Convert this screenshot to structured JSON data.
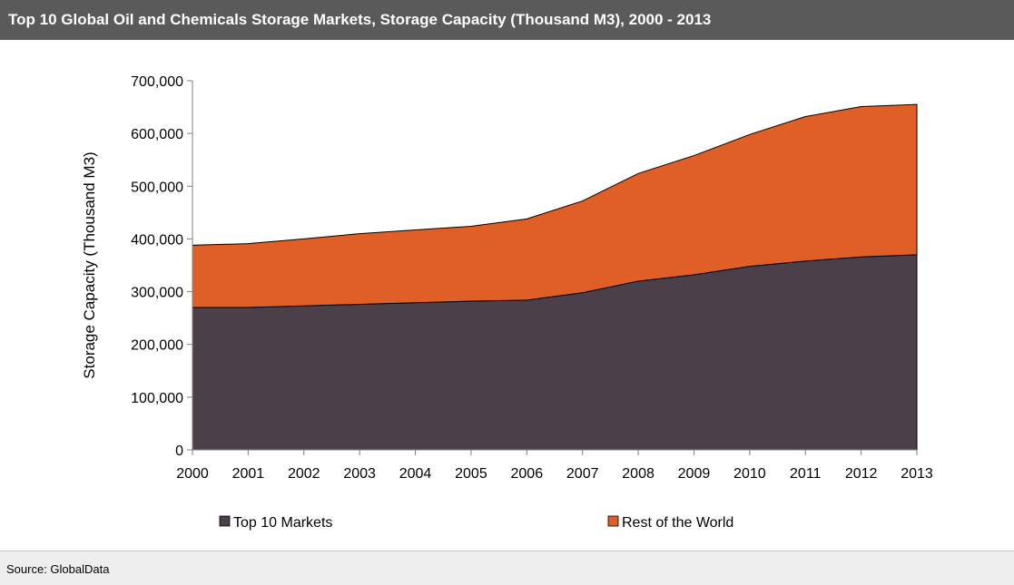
{
  "title": "Top 10 Global Oil and Chemicals Storage Markets, Storage Capacity (Thousand M3), 2000 - 2013",
  "source": "Source: GlobalData",
  "colors": {
    "header_bg": "#5a5a5a",
    "top10": "#4b3f4a",
    "rest": "#e05f26",
    "footer_bg": "#eeeeee"
  },
  "chart_data": {
    "type": "area",
    "stacked": true,
    "categories": [
      "2000",
      "2001",
      "2002",
      "2003",
      "2004",
      "2005",
      "2006",
      "2007",
      "2008",
      "2009",
      "2010",
      "2011",
      "2012",
      "2013"
    ],
    "series": [
      {
        "name": "Top 10 Markets",
        "color": "#4b3f4a",
        "values": [
          270000,
          270000,
          273000,
          276000,
          279000,
          282000,
          284000,
          298000,
          320000,
          332000,
          348000,
          358000,
          366000,
          370000
        ]
      },
      {
        "name": "Rest of the World",
        "color": "#e05f26",
        "values": [
          118000,
          121000,
          127000,
          134000,
          138000,
          142000,
          154000,
          174000,
          204000,
          226000,
          250000,
          274000,
          285000,
          285000
        ]
      }
    ],
    "ylabel": "Storage Capacity (Thousand M3)",
    "xlabel": "",
    "ylim": [
      0,
      700000
    ],
    "yticks": [
      0,
      100000,
      200000,
      300000,
      400000,
      500000,
      600000,
      700000
    ],
    "ytick_labels": [
      "0",
      "100,000",
      "200,000",
      "300,000",
      "400,000",
      "500,000",
      "600,000",
      "700,000"
    ],
    "grid": false,
    "legend_position": "bottom"
  }
}
